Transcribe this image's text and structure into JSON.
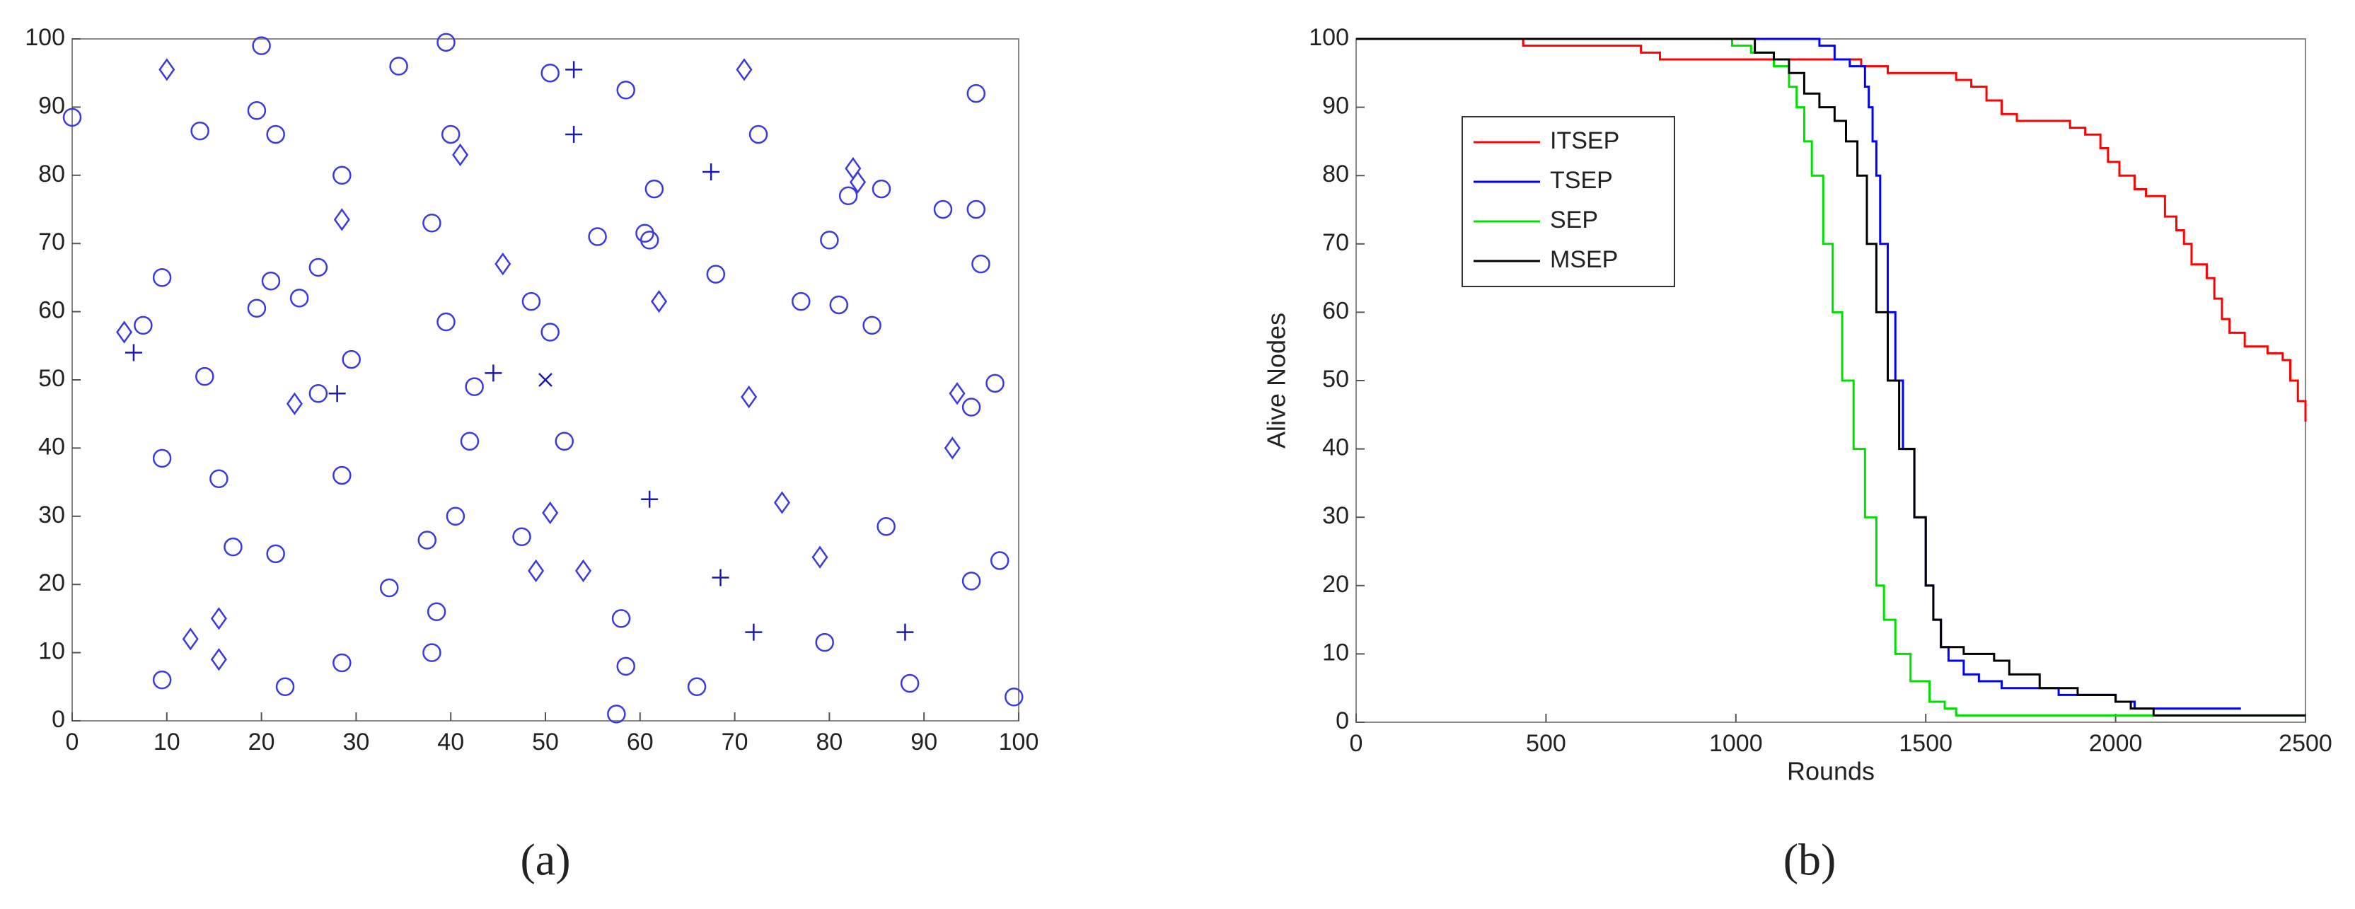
{
  "chart_data": [
    {
      "type": "scatter",
      "caption": "(a)",
      "xlim": [
        0,
        100
      ],
      "ylim": [
        0,
        100
      ],
      "xticks": [
        0,
        10,
        20,
        30,
        40,
        50,
        60,
        70,
        80,
        90,
        100
      ],
      "yticks": [
        0,
        10,
        20,
        30,
        40,
        50,
        60,
        70,
        80,
        90,
        100
      ],
      "grid": false,
      "series": [
        {
          "marker": "circle",
          "color": "#3a3adf",
          "x": [
            0,
            20,
            39.5,
            34.5,
            50.5,
            58.5,
            95.5,
            13.5,
            21.5,
            40,
            72.5,
            19.5,
            28.5,
            61.5,
            82,
            85.5,
            92,
            95.5,
            38,
            55.5,
            60.5,
            61,
            80,
            96,
            9.5,
            21,
            26,
            24,
            19.5,
            7.5,
            39.5,
            48.5,
            50.5,
            68,
            77,
            81,
            84.5,
            14,
            29.5,
            42.5,
            26,
            97.5,
            95,
            9.5,
            15.5,
            28.5,
            42,
            52,
            40.5,
            37.5,
            47.5,
            17,
            21.5,
            86,
            33.5,
            38.5,
            58,
            95,
            98,
            38,
            28.5,
            58.5,
            79.5,
            9.5,
            22.5,
            66,
            88.5,
            57.5,
            99.5
          ],
          "values": [
            88.5,
            99,
            99.5,
            96,
            95,
            92.5,
            92,
            86.5,
            86,
            86,
            86,
            89.5,
            80,
            78,
            77,
            78,
            75,
            75,
            73,
            71,
            71.5,
            70.5,
            70.5,
            67,
            65,
            64.5,
            66.5,
            62,
            60.5,
            58,
            58.5,
            61.5,
            57,
            65.5,
            61.5,
            61,
            58,
            50.5,
            53,
            49,
            48,
            49.5,
            46,
            38.5,
            35.5,
            36,
            41,
            41,
            30,
            26.5,
            27,
            25.5,
            24.5,
            28.5,
            19.5,
            16,
            15,
            20.5,
            23.5,
            10,
            8.5,
            8,
            11.5,
            6,
            5,
            5,
            5.5,
            1,
            3.5
          ]
        },
        {
          "marker": "diamond",
          "color": "#3a3adf",
          "x": [
            10,
            71,
            41,
            82.5,
            83,
            28.5,
            45.5,
            5.5,
            62,
            23.5,
            71.5,
            93.5,
            93,
            75,
            50.5,
            49,
            54,
            79,
            12.5,
            15.5,
            15.5
          ],
          "values": [
            95.5,
            95.5,
            83,
            81,
            79,
            73.5,
            67,
            57,
            61.5,
            46.5,
            47.5,
            48,
            40,
            32,
            30.5,
            22,
            22,
            24,
            12,
            15,
            9
          ]
        },
        {
          "marker": "plus",
          "color": "#1a1aa8",
          "x": [
            53,
            53,
            67.5,
            6.5,
            28,
            44.5,
            61,
            68.5,
            72,
            88
          ],
          "values": [
            95.5,
            86,
            80.5,
            54,
            48,
            51,
            32.5,
            21,
            13,
            13
          ]
        },
        {
          "marker": "x",
          "color": "#1a1aa8",
          "x": [
            50
          ],
          "values": [
            50
          ]
        }
      ]
    },
    {
      "type": "line",
      "caption": "(b)",
      "xlabel": "Rounds",
      "ylabel": "Alive Nodes",
      "xlim": [
        0,
        2500
      ],
      "ylim": [
        0,
        100
      ],
      "xticks": [
        0,
        500,
        1000,
        1500,
        2000,
        2500
      ],
      "yticks": [
        0,
        10,
        20,
        30,
        40,
        50,
        60,
        70,
        80,
        90,
        100
      ],
      "grid": false,
      "legend": "upper left",
      "step": true,
      "series": [
        {
          "name": "ITSEP",
          "color": "#ff0000",
          "x": [
            0,
            440,
            750,
            800,
            1330,
            1400,
            1580,
            1620,
            1660,
            1700,
            1740,
            1760,
            1880,
            1920,
            1960,
            1980,
            2010,
            2050,
            2080,
            2130,
            2160,
            2180,
            2200,
            2240,
            2260,
            2280,
            2300,
            2340,
            2400,
            2440,
            2460,
            2480,
            2500
          ],
          "values": [
            100,
            99,
            98,
            97,
            96,
            95,
            94,
            93,
            91,
            89,
            88,
            88,
            87,
            86,
            84,
            82,
            80,
            78,
            77,
            74,
            72,
            70,
            67,
            65,
            62,
            59,
            57,
            55,
            54,
            53,
            50,
            47,
            44
          ]
        },
        {
          "name": "TSEP",
          "color": "#0000ff",
          "x": [
            0,
            1220,
            1260,
            1300,
            1340,
            1350,
            1360,
            1370,
            1380,
            1400,
            1420,
            1440,
            1470,
            1500,
            1520,
            1540,
            1560,
            1600,
            1640,
            1700,
            1850,
            2000,
            2050,
            2330
          ],
          "values": [
            100,
            99,
            97,
            96,
            93,
            90,
            85,
            80,
            70,
            60,
            50,
            40,
            30,
            20,
            15,
            11,
            9,
            7,
            6,
            5,
            4,
            3,
            2,
            2
          ]
        },
        {
          "name": "SEP",
          "color": "#00e000",
          "x": [
            0,
            990,
            1040,
            1100,
            1140,
            1160,
            1180,
            1200,
            1230,
            1255,
            1280,
            1310,
            1340,
            1370,
            1390,
            1420,
            1460,
            1510,
            1550,
            1580,
            2500
          ],
          "values": [
            100,
            99,
            98,
            96,
            93,
            90,
            85,
            80,
            70,
            60,
            50,
            40,
            30,
            20,
            15,
            10,
            6,
            3,
            2,
            1,
            1
          ]
        },
        {
          "name": "MSEP",
          "color": "#000000",
          "x": [
            0,
            1050,
            1100,
            1140,
            1180,
            1220,
            1260,
            1290,
            1320,
            1345,
            1370,
            1400,
            1430,
            1470,
            1500,
            1520,
            1540,
            1600,
            1680,
            1720,
            1800,
            1900,
            2000,
            2040,
            2100,
            2500
          ],
          "values": [
            100,
            98,
            97,
            95,
            92,
            90,
            88,
            85,
            80,
            70,
            60,
            50,
            40,
            30,
            20,
            15,
            11,
            10,
            9,
            7,
            5,
            4,
            3,
            2,
            1,
            1
          ]
        }
      ]
    }
  ]
}
